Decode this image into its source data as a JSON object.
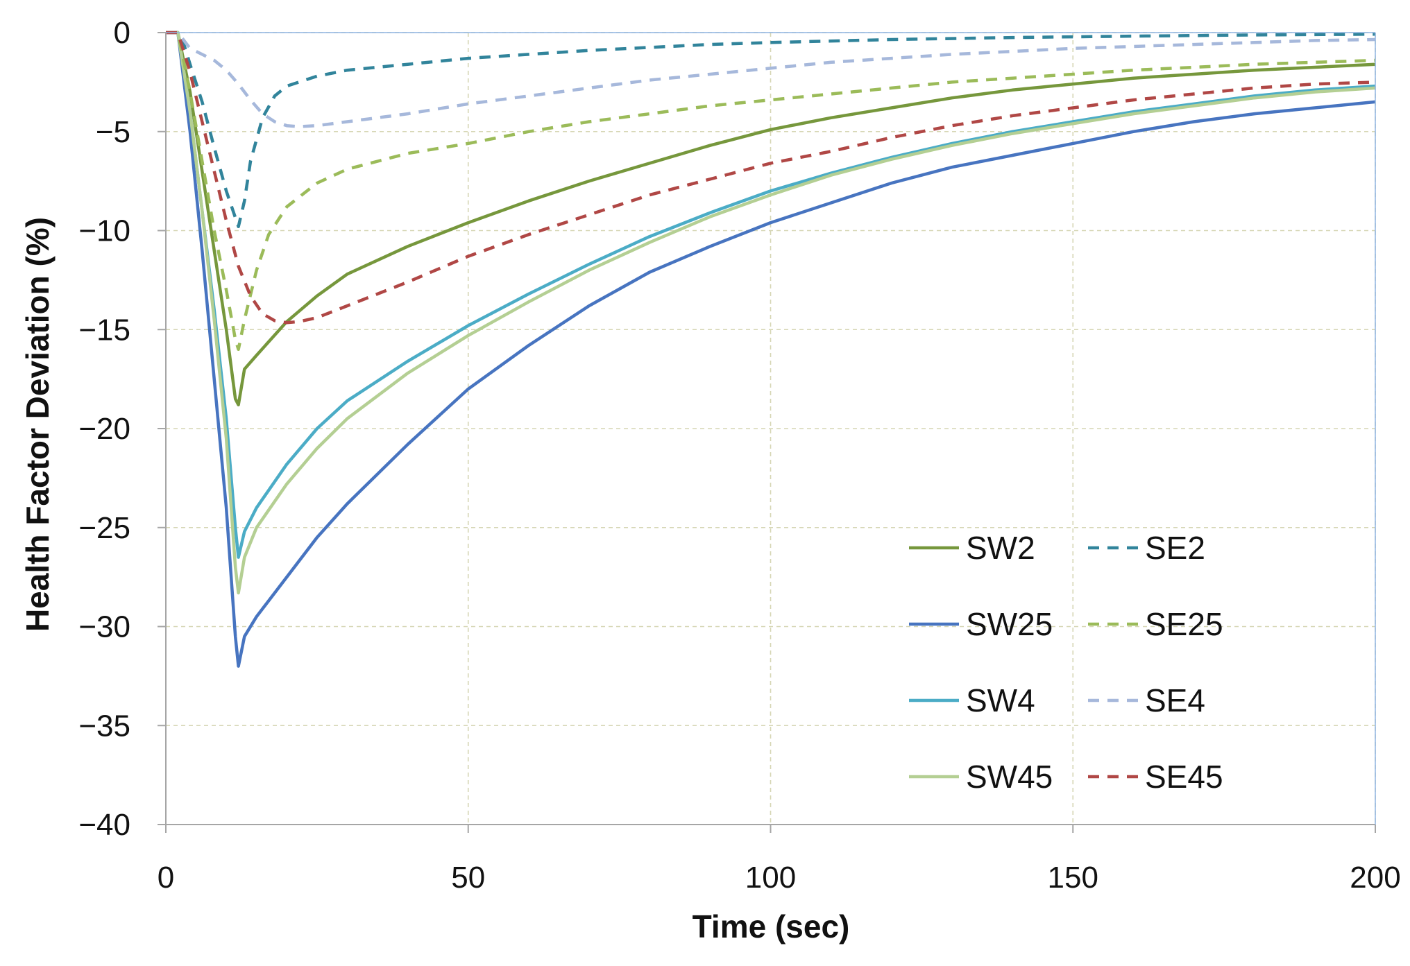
{
  "chart_data": {
    "type": "line",
    "title": "",
    "xlabel": "Time (sec)",
    "ylabel": "Health Factor Deviation (%)",
    "xlim": [
      0,
      200
    ],
    "ylim": [
      -40,
      0
    ],
    "xticks": [
      0,
      50,
      100,
      150,
      200
    ],
    "yticks": [
      0,
      -5,
      -10,
      -15,
      -20,
      -25,
      -30,
      -35,
      -40
    ],
    "xtick_labels": [
      "0",
      "50",
      "100",
      "150",
      "200"
    ],
    "ytick_labels": [
      "0",
      "−5",
      "−10",
      "−15",
      "−20",
      "−25",
      "−30",
      "−35",
      "−40"
    ],
    "grid": true,
    "legend_position": "bottom-right",
    "series": [
      {
        "name": "SW2",
        "color": "#76973c",
        "dash": "solid",
        "points": [
          [
            0,
            0
          ],
          [
            2,
            0
          ],
          [
            4,
            -3
          ],
          [
            6,
            -7
          ],
          [
            8,
            -11
          ],
          [
            10,
            -15
          ],
          [
            11.5,
            -18.5
          ],
          [
            12,
            -18.8
          ],
          [
            13,
            -17
          ],
          [
            15,
            -16.3
          ],
          [
            20,
            -14.6
          ],
          [
            25,
            -13.3
          ],
          [
            30,
            -12.2
          ],
          [
            40,
            -10.8
          ],
          [
            50,
            -9.6
          ],
          [
            60,
            -8.5
          ],
          [
            70,
            -7.5
          ],
          [
            80,
            -6.6
          ],
          [
            90,
            -5.7
          ],
          [
            100,
            -4.9
          ],
          [
            110,
            -4.3
          ],
          [
            120,
            -3.8
          ],
          [
            130,
            -3.3
          ],
          [
            140,
            -2.9
          ],
          [
            150,
            -2.6
          ],
          [
            160,
            -2.3
          ],
          [
            170,
            -2.1
          ],
          [
            180,
            -1.9
          ],
          [
            190,
            -1.75
          ],
          [
            200,
            -1.6
          ]
        ]
      },
      {
        "name": "SW25",
        "color": "#4774c0",
        "dash": "solid",
        "points": [
          [
            0,
            0
          ],
          [
            2,
            0
          ],
          [
            4,
            -5
          ],
          [
            6,
            -11
          ],
          [
            8,
            -17.5
          ],
          [
            10,
            -24
          ],
          [
            11.5,
            -30.5
          ],
          [
            12,
            -32
          ],
          [
            13,
            -30.5
          ],
          [
            15,
            -29.5
          ],
          [
            20,
            -27.5
          ],
          [
            25,
            -25.5
          ],
          [
            30,
            -23.8
          ],
          [
            40,
            -20.8
          ],
          [
            50,
            -18
          ],
          [
            60,
            -15.8
          ],
          [
            70,
            -13.8
          ],
          [
            80,
            -12.1
          ],
          [
            90,
            -10.8
          ],
          [
            100,
            -9.6
          ],
          [
            110,
            -8.6
          ],
          [
            120,
            -7.6
          ],
          [
            130,
            -6.8
          ],
          [
            140,
            -6.2
          ],
          [
            150,
            -5.6
          ],
          [
            160,
            -5
          ],
          [
            170,
            -4.5
          ],
          [
            180,
            -4.1
          ],
          [
            190,
            -3.8
          ],
          [
            200,
            -3.5
          ]
        ]
      },
      {
        "name": "SW4",
        "color": "#4bacc6",
        "dash": "solid",
        "points": [
          [
            0,
            0
          ],
          [
            2,
            0
          ],
          [
            4,
            -4
          ],
          [
            6,
            -9
          ],
          [
            8,
            -14
          ],
          [
            10,
            -19.5
          ],
          [
            11.5,
            -25
          ],
          [
            12,
            -26.5
          ],
          [
            13,
            -25.2
          ],
          [
            15,
            -24
          ],
          [
            20,
            -21.8
          ],
          [
            25,
            -20
          ],
          [
            30,
            -18.6
          ],
          [
            40,
            -16.6
          ],
          [
            50,
            -14.8
          ],
          [
            60,
            -13.2
          ],
          [
            70,
            -11.7
          ],
          [
            80,
            -10.3
          ],
          [
            90,
            -9.1
          ],
          [
            100,
            -8
          ],
          [
            110,
            -7.1
          ],
          [
            120,
            -6.3
          ],
          [
            130,
            -5.6
          ],
          [
            140,
            -5
          ],
          [
            150,
            -4.5
          ],
          [
            160,
            -4
          ],
          [
            170,
            -3.6
          ],
          [
            180,
            -3.2
          ],
          [
            190,
            -2.9
          ],
          [
            200,
            -2.7
          ]
        ]
      },
      {
        "name": "SW45",
        "color": "#b4cf93",
        "dash": "solid",
        "points": [
          [
            0,
            0
          ],
          [
            2,
            0
          ],
          [
            4,
            -4
          ],
          [
            6,
            -9
          ],
          [
            8,
            -14.5
          ],
          [
            10,
            -20.5
          ],
          [
            11.5,
            -27
          ],
          [
            12,
            -28.3
          ],
          [
            13,
            -26.5
          ],
          [
            15,
            -25
          ],
          [
            20,
            -22.8
          ],
          [
            25,
            -21
          ],
          [
            30,
            -19.5
          ],
          [
            40,
            -17.2
          ],
          [
            50,
            -15.3
          ],
          [
            60,
            -13.6
          ],
          [
            70,
            -12
          ],
          [
            80,
            -10.6
          ],
          [
            90,
            -9.3
          ],
          [
            100,
            -8.2
          ],
          [
            110,
            -7.2
          ],
          [
            120,
            -6.4
          ],
          [
            130,
            -5.7
          ],
          [
            140,
            -5.1
          ],
          [
            150,
            -4.6
          ],
          [
            160,
            -4.1
          ],
          [
            170,
            -3.7
          ],
          [
            180,
            -3.3
          ],
          [
            190,
            -3
          ],
          [
            200,
            -2.8
          ]
        ]
      },
      {
        "name": "SE2",
        "color": "#31849b",
        "dash": "dashed",
        "points": [
          [
            0,
            0
          ],
          [
            2,
            0
          ],
          [
            3,
            -0.6
          ],
          [
            4,
            -1.6
          ],
          [
            6,
            -3.5
          ],
          [
            8,
            -5.8
          ],
          [
            10,
            -8
          ],
          [
            12,
            -9.8
          ],
          [
            13,
            -8.5
          ],
          [
            14,
            -6.5
          ],
          [
            16,
            -4.3
          ],
          [
            18,
            -3.2
          ],
          [
            20,
            -2.7
          ],
          [
            25,
            -2.2
          ],
          [
            30,
            -1.9
          ],
          [
            40,
            -1.6
          ],
          [
            50,
            -1.3
          ],
          [
            60,
            -1.1
          ],
          [
            70,
            -0.9
          ],
          [
            80,
            -0.75
          ],
          [
            90,
            -0.6
          ],
          [
            100,
            -0.5
          ],
          [
            120,
            -0.35
          ],
          [
            140,
            -0.25
          ],
          [
            160,
            -0.18
          ],
          [
            180,
            -0.12
          ],
          [
            200,
            -0.08
          ]
        ]
      },
      {
        "name": "SE25",
        "color": "#9bbb59",
        "dash": "dashed",
        "points": [
          [
            0,
            0
          ],
          [
            2,
            0
          ],
          [
            4,
            -3
          ],
          [
            6,
            -6.5
          ],
          [
            8,
            -10
          ],
          [
            10,
            -13
          ],
          [
            11.5,
            -15.5
          ],
          [
            12,
            -16
          ],
          [
            13,
            -14.5
          ],
          [
            15,
            -12
          ],
          [
            17,
            -10.2
          ],
          [
            20,
            -8.8
          ],
          [
            25,
            -7.6
          ],
          [
            30,
            -6.9
          ],
          [
            40,
            -6.1
          ],
          [
            50,
            -5.6
          ],
          [
            60,
            -5
          ],
          [
            70,
            -4.5
          ],
          [
            80,
            -4.1
          ],
          [
            90,
            -3.7
          ],
          [
            100,
            -3.4
          ],
          [
            110,
            -3.1
          ],
          [
            120,
            -2.8
          ],
          [
            130,
            -2.5
          ],
          [
            140,
            -2.3
          ],
          [
            150,
            -2.1
          ],
          [
            160,
            -1.9
          ],
          [
            170,
            -1.75
          ],
          [
            180,
            -1.6
          ],
          [
            190,
            -1.5
          ],
          [
            200,
            -1.4
          ]
        ]
      },
      {
        "name": "SE4",
        "color": "#a6b8db",
        "dash": "dashed",
        "points": [
          [
            0,
            0
          ],
          [
            2,
            0
          ],
          [
            4,
            -0.8
          ],
          [
            6,
            -1.1
          ],
          [
            8,
            -1.4
          ],
          [
            10,
            -1.9
          ],
          [
            12,
            -2.6
          ],
          [
            14,
            -3.4
          ],
          [
            16,
            -4.1
          ],
          [
            18,
            -4.5
          ],
          [
            20,
            -4.7
          ],
          [
            22,
            -4.75
          ],
          [
            25,
            -4.7
          ],
          [
            30,
            -4.5
          ],
          [
            40,
            -4.1
          ],
          [
            50,
            -3.6
          ],
          [
            60,
            -3.2
          ],
          [
            70,
            -2.8
          ],
          [
            80,
            -2.4
          ],
          [
            90,
            -2.1
          ],
          [
            100,
            -1.8
          ],
          [
            110,
            -1.5
          ],
          [
            120,
            -1.3
          ],
          [
            130,
            -1.1
          ],
          [
            140,
            -0.95
          ],
          [
            150,
            -0.8
          ],
          [
            160,
            -0.7
          ],
          [
            170,
            -0.6
          ],
          [
            180,
            -0.5
          ],
          [
            190,
            -0.4
          ],
          [
            200,
            -0.35
          ]
        ]
      },
      {
        "name": "SE45",
        "color": "#b04745",
        "dash": "dashed",
        "points": [
          [
            0,
            0
          ],
          [
            2,
            0
          ],
          [
            4,
            -2
          ],
          [
            6,
            -4.5
          ],
          [
            8,
            -7
          ],
          [
            10,
            -9.5
          ],
          [
            12,
            -11.8
          ],
          [
            14,
            -13.3
          ],
          [
            16,
            -14.2
          ],
          [
            18,
            -14.55
          ],
          [
            20,
            -14.65
          ],
          [
            22,
            -14.6
          ],
          [
            25,
            -14.4
          ],
          [
            30,
            -13.8
          ],
          [
            40,
            -12.6
          ],
          [
            50,
            -11.3
          ],
          [
            60,
            -10.2
          ],
          [
            70,
            -9.2
          ],
          [
            80,
            -8.2
          ],
          [
            90,
            -7.4
          ],
          [
            100,
            -6.6
          ],
          [
            110,
            -6
          ],
          [
            120,
            -5.3
          ],
          [
            130,
            -4.7
          ],
          [
            140,
            -4.2
          ],
          [
            150,
            -3.8
          ],
          [
            160,
            -3.4
          ],
          [
            170,
            -3.1
          ],
          [
            180,
            -2.8
          ],
          [
            190,
            -2.6
          ],
          [
            200,
            -2.5
          ]
        ]
      }
    ]
  }
}
